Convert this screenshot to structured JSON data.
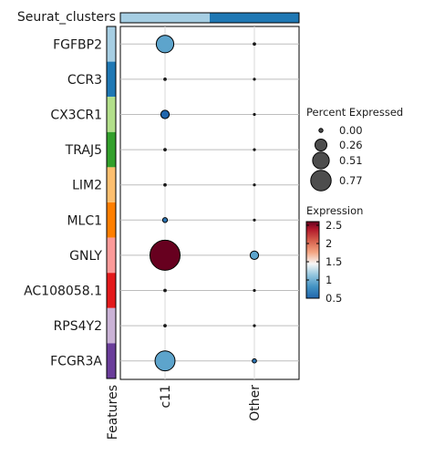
{
  "chart_data": {
    "type": "dotplot",
    "top_annotation_title": "Seurat_clusters",
    "group_colors": [
      "#a6cee3",
      "#1f78b4"
    ],
    "feature_axis_label": "Features",
    "genes": [
      "FGFBP2",
      "CCR3",
      "CX3CR1",
      "TRAJ5",
      "LIM2",
      "MLC1",
      "GNLY",
      "AC108058.1",
      "RPS4Y2",
      "FCGR3A"
    ],
    "gene_colors": [
      "#a6cee3",
      "#1f78b4",
      "#b2df8a",
      "#33a02c",
      "#fdbf6f",
      "#ff7f00",
      "#fb9a99",
      "#e31a1c",
      "#cab2d6",
      "#6a3d9a"
    ],
    "groups": [
      "c11",
      "Other"
    ],
    "percent_expressed": [
      [
        0.26,
        0.01
      ],
      [
        0.01,
        0.005
      ],
      [
        0.06,
        0.005
      ],
      [
        0.01,
        0.005
      ],
      [
        0.01,
        0.005
      ],
      [
        0.02,
        0.005
      ],
      [
        0.77,
        0.06
      ],
      [
        0.01,
        0.005
      ],
      [
        0.01,
        0.005
      ],
      [
        0.34,
        0.015
      ]
    ],
    "expression": [
      [
        0.9,
        0.6
      ],
      [
        0.6,
        0.6
      ],
      [
        0.5,
        0.6
      ],
      [
        0.6,
        0.6
      ],
      [
        0.6,
        0.6
      ],
      [
        0.6,
        0.6
      ],
      [
        2.6,
        0.9
      ],
      [
        0.6,
        0.6
      ],
      [
        0.6,
        0.6
      ],
      [
        0.9,
        0.6
      ]
    ],
    "size_legend": {
      "title": "Percent Expressed",
      "values": [
        0.0,
        0.26,
        0.51,
        0.77
      ],
      "labels": [
        "0.00",
        "0.26",
        "0.51",
        "0.77"
      ]
    },
    "color_legend": {
      "title": "Expression",
      "range": [
        0.5,
        2.6
      ],
      "ticks": [
        0.5,
        1,
        1.5,
        2,
        2.5
      ],
      "tick_labels": [
        "0.5",
        "1",
        "1.5",
        "2",
        "2.5"
      ],
      "palette": [
        "#2166ac",
        "#4393c3",
        "#92c5de",
        "#f7f7f7",
        "#f4a582",
        "#d6604d",
        "#b2182b",
        "#67001f"
      ]
    }
  }
}
